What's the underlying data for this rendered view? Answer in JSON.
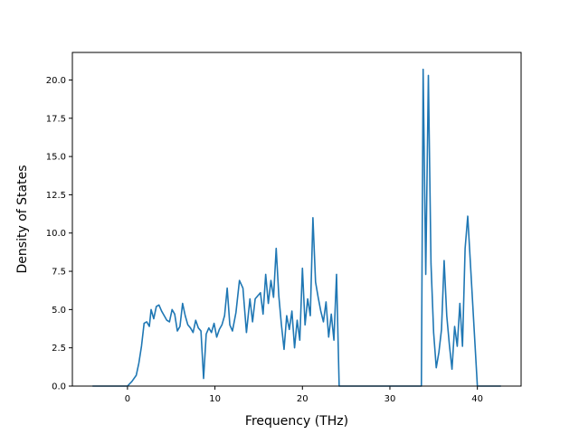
{
  "chart_data": {
    "type": "line",
    "xlabel": "Frequency (THz)",
    "ylabel": "Density of States",
    "xlim": [
      -6.3,
      45.0
    ],
    "ylim": [
      0.0,
      21.8
    ],
    "x_ticks": [
      0,
      10,
      20,
      30,
      40
    ],
    "y_ticks": [
      0.0,
      2.5,
      5.0,
      7.5,
      10.0,
      12.5,
      15.0,
      17.5,
      20.0
    ],
    "x_tick_labels": [
      "0",
      "10",
      "20",
      "30",
      "40"
    ],
    "y_tick_labels": [
      "0.0",
      "2.5",
      "5.0",
      "7.5",
      "10.0",
      "12.5",
      "15.0",
      "17.5",
      "20.0"
    ],
    "grid": false,
    "line_color": "#1f77b4",
    "series": [
      {
        "x": [
          -4.0,
          -1.0,
          0.0,
          0.5,
          1.0,
          1.3,
          1.6,
          1.9,
          2.2,
          2.5,
          2.7,
          3.0,
          3.3,
          3.6,
          3.9,
          4.2,
          4.5,
          4.8,
          5.1,
          5.4,
          5.7,
          6.0,
          6.3,
          6.6,
          6.9,
          7.2,
          7.5,
          7.8,
          8.1,
          8.4,
          8.7,
          9.0,
          9.3,
          9.6,
          9.9,
          10.2,
          10.5,
          10.8,
          11.1,
          11.4,
          11.7,
          12.0,
          12.4,
          12.8,
          13.2,
          13.6,
          14.0,
          14.3,
          14.6,
          14.9,
          15.2,
          15.5,
          15.8,
          16.1,
          16.4,
          16.7,
          17.0,
          17.3,
          17.6,
          17.9,
          18.2,
          18.5,
          18.8,
          19.1,
          19.4,
          19.7,
          20.0,
          20.3,
          20.6,
          20.9,
          21.2,
          21.5,
          21.8,
          22.1,
          22.4,
          22.7,
          23.0,
          23.3,
          23.6,
          23.9,
          24.2,
          24.5,
          24.8,
          25.1,
          25.4,
          25.7,
          26.0,
          30.0,
          33.6,
          33.8,
          34.1,
          34.4,
          34.7,
          35.0,
          35.3,
          35.6,
          35.9,
          36.2,
          36.5,
          36.8,
          37.1,
          37.4,
          37.7,
          38.0,
          38.3,
          38.6,
          38.9,
          40.0,
          42.7
        ],
        "y": [
          0.0,
          0.0,
          0.0,
          0.3,
          0.7,
          1.5,
          2.6,
          4.1,
          4.2,
          3.9,
          5.0,
          4.4,
          5.2,
          5.3,
          4.9,
          4.6,
          4.3,
          4.2,
          5.0,
          4.7,
          3.6,
          3.9,
          5.4,
          4.6,
          4.0,
          3.8,
          3.5,
          4.3,
          3.8,
          3.6,
          0.5,
          3.4,
          3.8,
          3.5,
          4.1,
          3.2,
          3.7,
          4.0,
          4.6,
          6.4,
          4.0,
          3.6,
          4.8,
          6.9,
          6.4,
          3.5,
          5.7,
          4.2,
          5.7,
          5.9,
          6.1,
          4.7,
          7.3,
          5.4,
          6.9,
          5.8,
          9.0,
          5.9,
          4.0,
          2.4,
          4.6,
          3.7,
          4.9,
          2.5,
          4.3,
          3.0,
          7.7,
          4.0,
          5.7,
          4.6,
          11.0,
          6.8,
          5.8,
          4.9,
          4.2,
          5.5,
          3.2,
          4.7,
          3.0,
          7.3,
          0.0,
          0.0,
          0.0,
          0.0,
          0.0,
          0.0,
          0.0,
          0.0,
          0.0,
          20.7,
          7.3,
          20.3,
          8.0,
          3.5,
          1.2,
          2.2,
          3.7,
          8.2,
          4.6,
          2.7,
          1.1,
          3.9,
          2.6,
          5.4,
          2.6,
          9.0,
          11.1,
          0.0,
          0.0
        ]
      }
    ]
  }
}
